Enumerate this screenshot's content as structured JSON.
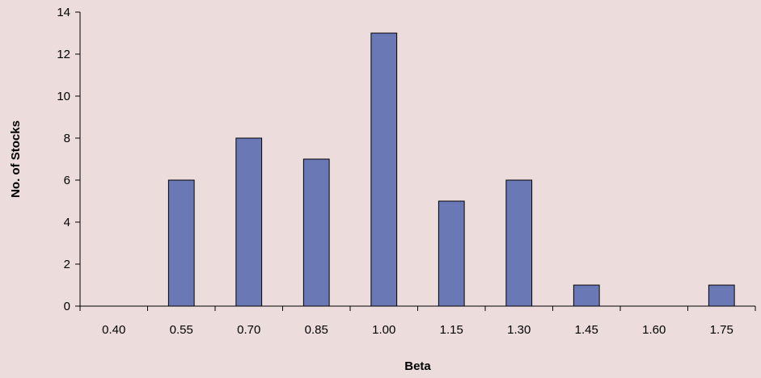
{
  "chart_data": {
    "type": "bar",
    "title": "",
    "xlabel": "Beta",
    "ylabel": "No. of Stocks",
    "categories": [
      "0.40",
      "0.55",
      "0.70",
      "0.85",
      "1.00",
      "1.15",
      "1.30",
      "1.45",
      "1.60",
      "1.75"
    ],
    "values": [
      0,
      6,
      8,
      7,
      13,
      5,
      6,
      1,
      0,
      1
    ],
    "ylim": [
      0,
      14
    ],
    "yticks": [
      "0",
      "2",
      "4",
      "6",
      "8",
      "10",
      "12",
      "14"
    ],
    "grid": false,
    "legend": "none",
    "colors": {
      "background": "#ecdcdc",
      "bar_fill": "#6b78b6",
      "bar_stroke": "#000000",
      "axis": "#000000"
    }
  }
}
